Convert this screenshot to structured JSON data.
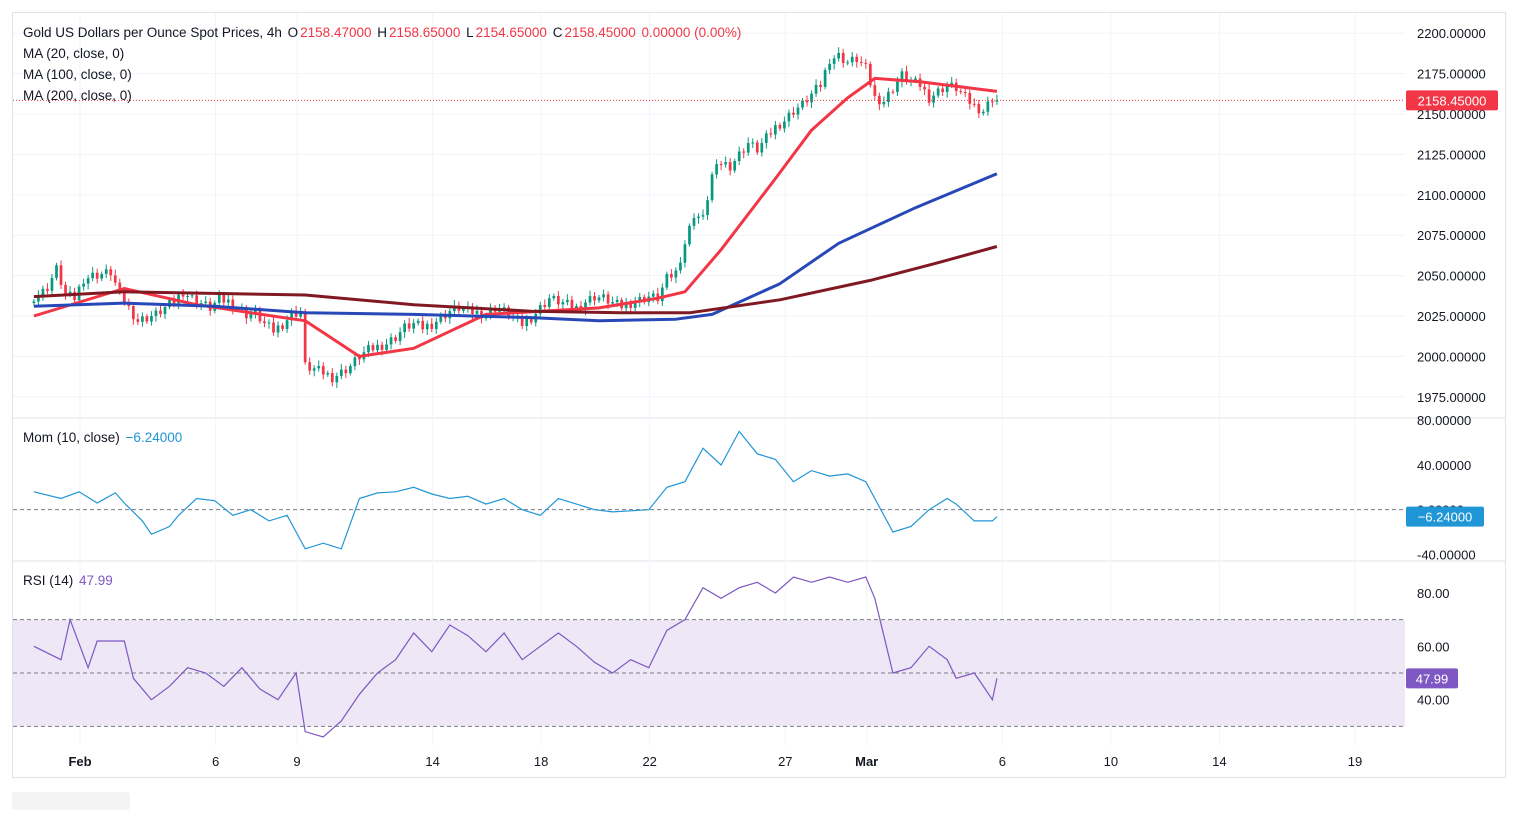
{
  "header": {
    "symbol": "Gold US Dollars per Ounce Spot Prices, 4h",
    "open_label": "O",
    "open": "2158.47000",
    "high_label": "H",
    "high": "2158.65000",
    "low_label": "L",
    "low": "2154.65000",
    "close_label": "C",
    "close": "2158.45000",
    "change": "0.00000 (0.00%)"
  },
  "indicators": {
    "ma20": "MA (20, close, 0)",
    "ma100": "MA (100, close, 0)",
    "ma200": "MA (200, close, 0)",
    "mom_label": "Mom (10, close)",
    "mom_value": "−6.24000",
    "rsi_label": "RSI (14)",
    "rsi_value": "47.99"
  },
  "badges": {
    "price": "2158.45000",
    "mom": "−6.24000",
    "rsi": "47.99"
  },
  "colors": {
    "up": "#089981",
    "down": "#f23645",
    "ma20": "#f23645",
    "ma100": "#2848b8",
    "ma200": "#801922",
    "mom": "#2196d6",
    "rsi": "#7e57c2",
    "rsi_band": "#ede7f6"
  },
  "chart_data": [
    {
      "type": "candlestick",
      "title": "Gold US Dollars per Ounce Spot Prices, 4h",
      "timeframe": "4h",
      "ylim": [
        1962.5,
        2212.5
      ],
      "y_ticks": [
        "1975.00000",
        "2000.00000",
        "2025.00000",
        "2050.00000",
        "2075.00000",
        "2100.00000",
        "2125.00000",
        "2150.00000",
        "2175.00000",
        "2200.00000"
      ],
      "y_tick_values": [
        1975,
        2000,
        2025,
        2050,
        2075,
        2100,
        2125,
        2150,
        2175,
        2200
      ],
      "x_ticks": [
        "Feb",
        "6",
        "9",
        "14",
        "18",
        "22",
        "27",
        "Mar",
        "6",
        "10",
        "14",
        "19"
      ],
      "x_tick_days": [
        0,
        5,
        8,
        13,
        17,
        21,
        26,
        29,
        34,
        38,
        42,
        47
      ],
      "x_start_day": -1.7,
      "bars_per_day": 6,
      "close_path": [
        [
          0,
          2037
        ],
        [
          2,
          2040
        ],
        [
          3,
          2043
        ],
        [
          5,
          2054
        ],
        [
          7,
          2038
        ],
        [
          9,
          2036
        ],
        [
          11,
          2048
        ],
        [
          13,
          2050
        ],
        [
          15,
          2051
        ],
        [
          17,
          2052
        ],
        [
          19,
          2038
        ],
        [
          21,
          2030
        ],
        [
          23,
          2022
        ],
        [
          25,
          2024
        ],
        [
          27,
          2026
        ],
        [
          29,
          2030
        ],
        [
          31,
          2034
        ],
        [
          33,
          2040
        ],
        [
          35,
          2036
        ],
        [
          37,
          2033
        ],
        [
          39,
          2030
        ],
        [
          41,
          2035
        ],
        [
          43,
          2034
        ],
        [
          45,
          2030
        ],
        [
          47,
          2026
        ],
        [
          49,
          2027
        ],
        [
          51,
          2020
        ],
        [
          53,
          2016
        ],
        [
          55,
          2020
        ],
        [
          57,
          2026
        ],
        [
          59,
          2028
        ],
        [
          60,
          1994
        ],
        [
          62,
          1992
        ],
        [
          64,
          1990
        ],
        [
          66,
          1987
        ],
        [
          68,
          1990
        ],
        [
          70,
          1994
        ],
        [
          72,
          2000
        ],
        [
          74,
          2004
        ],
        [
          76,
          2006
        ],
        [
          78,
          2008
        ],
        [
          80,
          2012
        ],
        [
          82,
          2018
        ],
        [
          84,
          2020
        ],
        [
          86,
          2018
        ],
        [
          88,
          2020
        ],
        [
          90,
          2024
        ],
        [
          92,
          2028
        ],
        [
          94,
          2030
        ],
        [
          96,
          2028
        ],
        [
          98,
          2027
        ],
        [
          100,
          2026
        ],
        [
          102,
          2030
        ],
        [
          104,
          2028
        ],
        [
          106,
          2024
        ],
        [
          108,
          2020
        ],
        [
          110,
          2024
        ],
        [
          112,
          2030
        ],
        [
          114,
          2036
        ],
        [
          116,
          2034
        ],
        [
          118,
          2032
        ],
        [
          120,
          2030
        ],
        [
          122,
          2034
        ],
        [
          124,
          2037
        ],
        [
          126,
          2036
        ],
        [
          128,
          2033
        ],
        [
          130,
          2031
        ],
        [
          132,
          2033
        ],
        [
          134,
          2035
        ],
        [
          136,
          2037
        ],
        [
          138,
          2036
        ],
        [
          140,
          2048
        ],
        [
          142,
          2052
        ],
        [
          144,
          2070
        ],
        [
          146,
          2088
        ],
        [
          148,
          2085
        ],
        [
          150,
          2112
        ],
        [
          152,
          2120
        ],
        [
          154,
          2118
        ],
        [
          156,
          2125
        ],
        [
          158,
          2132
        ],
        [
          160,
          2128
        ],
        [
          162,
          2135
        ],
        [
          164,
          2142
        ],
        [
          166,
          2146
        ],
        [
          168,
          2152
        ],
        [
          170,
          2156
        ],
        [
          172,
          2162
        ],
        [
          174,
          2168
        ],
        [
          176,
          2184
        ],
        [
          178,
          2186
        ],
        [
          180,
          2182
        ],
        [
          182,
          2184
        ],
        [
          184,
          2178
        ],
        [
          186,
          2160
        ],
        [
          188,
          2158
        ],
        [
          190,
          2166
        ],
        [
          192,
          2174
        ],
        [
          194,
          2170
        ],
        [
          196,
          2168
        ],
        [
          198,
          2160
        ],
        [
          200,
          2164
        ],
        [
          202,
          2168
        ],
        [
          204,
          2166
        ],
        [
          206,
          2160
        ],
        [
          208,
          2155
        ],
        [
          210,
          2152
        ],
        [
          212,
          2160
        ],
        [
          213,
          2158.45
        ]
      ],
      "last_close": 2158.45,
      "series": [
        {
          "name": "MA (20, close, 0)",
          "points": [
            [
              0,
              2025
            ],
            [
              20,
              2042
            ],
            [
              36,
              2032
            ],
            [
              60,
              2022
            ],
            [
              72,
              2000
            ],
            [
              84,
              2005
            ],
            [
              100,
              2026
            ],
            [
              125,
              2030
            ],
            [
              138,
              2036
            ],
            [
              144,
              2040
            ],
            [
              152,
              2066
            ],
            [
              164,
              2110
            ],
            [
              172,
              2140
            ],
            [
              180,
              2160
            ],
            [
              186,
              2172
            ],
            [
              196,
              2170
            ],
            [
              213,
              2164
            ]
          ]
        },
        {
          "name": "MA (100, close, 0)",
          "points": [
            [
              0,
              2031
            ],
            [
              20,
              2033
            ],
            [
              40,
              2031
            ],
            [
              60,
              2027
            ],
            [
              84,
              2026
            ],
            [
              110,
              2024
            ],
            [
              125,
              2022
            ],
            [
              142,
              2023
            ],
            [
              150,
              2026
            ],
            [
              165,
              2045
            ],
            [
              178,
              2070
            ],
            [
              195,
              2092
            ],
            [
              213,
              2113
            ]
          ]
        },
        {
          "name": "MA (200, close, 0)",
          "points": [
            [
              0,
              2037
            ],
            [
              20,
              2040
            ],
            [
              60,
              2038
            ],
            [
              84,
              2032
            ],
            [
              110,
              2028
            ],
            [
              130,
              2027
            ],
            [
              145,
              2027
            ],
            [
              165,
              2035
            ],
            [
              185,
              2047
            ],
            [
              200,
              2058
            ],
            [
              213,
              2068
            ]
          ]
        }
      ]
    },
    {
      "type": "line",
      "title": "Mom (10, close)",
      "ylim": [
        -45,
        82
      ],
      "y_ticks": [
        "-40.00000",
        "0.00000",
        "40.00000",
        "80.00000"
      ],
      "y_tick_values": [
        -40,
        0,
        40,
        80
      ],
      "baseline": 0,
      "last_value": -6.24,
      "points": [
        [
          0,
          16
        ],
        [
          6,
          10
        ],
        [
          10,
          16
        ],
        [
          14,
          6
        ],
        [
          18,
          15
        ],
        [
          20,
          6
        ],
        [
          24,
          -10
        ],
        [
          26,
          -22
        ],
        [
          30,
          -15
        ],
        [
          32,
          -5
        ],
        [
          36,
          10
        ],
        [
          40,
          8
        ],
        [
          44,
          -5
        ],
        [
          48,
          0
        ],
        [
          52,
          -10
        ],
        [
          56,
          -5
        ],
        [
          60,
          -35
        ],
        [
          64,
          -30
        ],
        [
          68,
          -35
        ],
        [
          72,
          10
        ],
        [
          76,
          15
        ],
        [
          80,
          16
        ],
        [
          84,
          20
        ],
        [
          88,
          14
        ],
        [
          92,
          10
        ],
        [
          96,
          12
        ],
        [
          100,
          5
        ],
        [
          104,
          10
        ],
        [
          108,
          0
        ],
        [
          112,
          -5
        ],
        [
          116,
          10
        ],
        [
          120,
          5
        ],
        [
          124,
          0
        ],
        [
          128,
          -2
        ],
        [
          132,
          -1
        ],
        [
          136,
          0
        ],
        [
          140,
          20
        ],
        [
          144,
          25
        ],
        [
          148,
          55
        ],
        [
          152,
          40
        ],
        [
          156,
          70
        ],
        [
          160,
          50
        ],
        [
          164,
          45
        ],
        [
          168,
          25
        ],
        [
          172,
          35
        ],
        [
          176,
          30
        ],
        [
          180,
          32
        ],
        [
          184,
          25
        ],
        [
          186,
          10
        ],
        [
          190,
          -20
        ],
        [
          194,
          -15
        ],
        [
          198,
          0
        ],
        [
          202,
          10
        ],
        [
          204,
          5
        ],
        [
          208,
          -10
        ],
        [
          212,
          -10
        ],
        [
          213,
          -6.24
        ]
      ]
    },
    {
      "type": "line",
      "title": "RSI (14)",
      "ylim": [
        23,
        92
      ],
      "y_ticks": [
        "40.00",
        "60.00",
        "80.00"
      ],
      "y_tick_values": [
        40,
        60,
        80
      ],
      "bands": [
        30,
        50,
        70
      ],
      "last_value": 47.99,
      "points": [
        [
          0,
          60
        ],
        [
          6,
          55
        ],
        [
          8,
          70
        ],
        [
          12,
          52
        ],
        [
          14,
          62
        ],
        [
          20,
          62
        ],
        [
          22,
          48
        ],
        [
          26,
          40
        ],
        [
          30,
          45
        ],
        [
          34,
          52
        ],
        [
          38,
          50
        ],
        [
          42,
          45
        ],
        [
          46,
          52
        ],
        [
          50,
          44
        ],
        [
          54,
          40
        ],
        [
          58,
          50
        ],
        [
          60,
          28
        ],
        [
          64,
          26
        ],
        [
          68,
          32
        ],
        [
          72,
          42
        ],
        [
          76,
          50
        ],
        [
          80,
          55
        ],
        [
          84,
          65
        ],
        [
          88,
          58
        ],
        [
          92,
          68
        ],
        [
          96,
          64
        ],
        [
          100,
          58
        ],
        [
          104,
          65
        ],
        [
          108,
          55
        ],
        [
          112,
          60
        ],
        [
          116,
          65
        ],
        [
          120,
          60
        ],
        [
          124,
          54
        ],
        [
          128,
          50
        ],
        [
          132,
          55
        ],
        [
          136,
          52
        ],
        [
          140,
          66
        ],
        [
          144,
          70
        ],
        [
          148,
          82
        ],
        [
          152,
          78
        ],
        [
          156,
          82
        ],
        [
          160,
          84
        ],
        [
          164,
          80
        ],
        [
          168,
          86
        ],
        [
          172,
          84
        ],
        [
          176,
          86
        ],
        [
          180,
          84
        ],
        [
          184,
          86
        ],
        [
          186,
          78
        ],
        [
          190,
          50
        ],
        [
          194,
          52
        ],
        [
          198,
          60
        ],
        [
          202,
          55
        ],
        [
          204,
          48
        ],
        [
          208,
          50
        ],
        [
          210,
          45
        ],
        [
          212,
          40
        ],
        [
          213,
          47.99
        ]
      ]
    }
  ]
}
